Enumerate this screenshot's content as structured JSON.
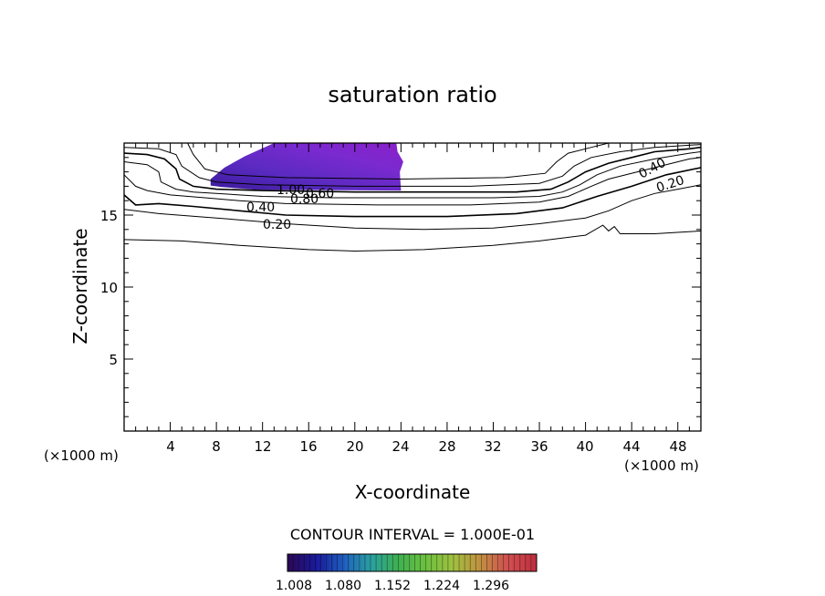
{
  "chart_data": {
    "type": "contour",
    "title": "saturation ratio",
    "xlabel": "X-coordinate",
    "ylabel": "Z-coordinate",
    "x_unit_left": "(×1000 m)",
    "x_unit_right": "(×1000 m)",
    "xlim": [
      0,
      50
    ],
    "ylim": [
      0,
      20
    ],
    "x_ticks": [
      "4",
      "8",
      "12",
      "16",
      "20",
      "24",
      "28",
      "32",
      "36",
      "40",
      "44",
      "48"
    ],
    "y_ticks": [
      "5",
      "10",
      "15"
    ],
    "contour_interval_text": "CONTOUR INTERVAL = 1.000E-01",
    "contour_labels": [
      "1.00",
      "0.80",
      "0.60",
      "0.40",
      "0.20",
      "0.40",
      "0.20"
    ],
    "colorbar": {
      "ticks": [
        "1.008",
        "1.080",
        "1.152",
        "1.224",
        "1.296"
      ],
      "range": [
        1.008,
        1.332
      ],
      "colors": [
        "#2a0a5a",
        "#1a1a9a",
        "#1f5fbf",
        "#2aa0a0",
        "#3fb050",
        "#6cc040",
        "#a0c040",
        "#c09040",
        "#d05050",
        "#c03040"
      ]
    },
    "shaded_region": {
      "x_range": [
        7.5,
        24
      ],
      "z_range": [
        16.7,
        20
      ],
      "value_range": [
        1.008,
        1.06
      ],
      "colors": [
        "#3a1a9a",
        "#5a2ac0",
        "#7a2ad0",
        "#8a20c8"
      ]
    },
    "contours": [
      {
        "level": "0.20",
        "points": [
          [
            0,
            13.3
          ],
          [
            5,
            13.2
          ],
          [
            10,
            12.9
          ],
          [
            16,
            12.6
          ],
          [
            20,
            12.5
          ],
          [
            26,
            12.6
          ],
          [
            32,
            12.9
          ],
          [
            36,
            13.2
          ],
          [
            40,
            13.6
          ],
          [
            41.5,
            14.3
          ],
          [
            42,
            13.9
          ],
          [
            42.5,
            14.2
          ],
          [
            43,
            13.7
          ],
          [
            46,
            13.7
          ],
          [
            50,
            13.9
          ]
        ]
      },
      {
        "level": "0.20",
        "points": [
          [
            0,
            15.4
          ],
          [
            3,
            15.1
          ],
          [
            8,
            14.8
          ],
          [
            14,
            14.4
          ],
          [
            20,
            14.1
          ],
          [
            26,
            14.0
          ],
          [
            32,
            14.1
          ],
          [
            36,
            14.4
          ],
          [
            40,
            14.8
          ],
          [
            42,
            15.3
          ],
          [
            44,
            16.0
          ],
          [
            46,
            16.5
          ],
          [
            48,
            16.8
          ],
          [
            50,
            17.1
          ]
        ]
      },
      {
        "level": "0.40",
        "points": [
          [
            0,
            16.4
          ],
          [
            1,
            15.7
          ],
          [
            3,
            15.8
          ],
          [
            6,
            15.6
          ],
          [
            10,
            15.3
          ],
          [
            14,
            15.0
          ],
          [
            20,
            14.9
          ],
          [
            28,
            14.9
          ],
          [
            34,
            15.1
          ],
          [
            38,
            15.5
          ],
          [
            41,
            16.3
          ],
          [
            44,
            17.0
          ],
          [
            47,
            17.8
          ],
          [
            50,
            18.3
          ]
        ]
      },
      {
        "level": "0.60",
        "points": [
          [
            0,
            17.8
          ],
          [
            1,
            17.0
          ],
          [
            2,
            16.7
          ],
          [
            4,
            16.4
          ],
          [
            7,
            16.2
          ],
          [
            10,
            16.0
          ],
          [
            14,
            15.8
          ],
          [
            22,
            15.7
          ],
          [
            30,
            15.7
          ],
          [
            36,
            15.9
          ],
          [
            38.5,
            16.3
          ],
          [
            40.5,
            17.0
          ],
          [
            42,
            17.5
          ],
          [
            46,
            18.3
          ],
          [
            49,
            18.9
          ],
          [
            50,
            19.0
          ]
        ]
      },
      {
        "level": "0.80",
        "points": [
          [
            0,
            18.7
          ],
          [
            2,
            18.5
          ],
          [
            3,
            18.0
          ],
          [
            3.2,
            17.3
          ],
          [
            4.5,
            16.8
          ],
          [
            6,
            16.6
          ],
          [
            8,
            16.5
          ],
          [
            12,
            16.3
          ],
          [
            18,
            16.2
          ],
          [
            26,
            16.2
          ],
          [
            32,
            16.2
          ],
          [
            36,
            16.3
          ],
          [
            38,
            16.6
          ],
          [
            39.5,
            17.1
          ],
          [
            41,
            17.8
          ],
          [
            43,
            18.4
          ],
          [
            46,
            18.9
          ],
          [
            49,
            19.3
          ],
          [
            50,
            19.4
          ]
        ]
      },
      {
        "level": "1.00",
        "points": [
          [
            0,
            19.3
          ],
          [
            2,
            19.2
          ],
          [
            3.5,
            18.9
          ],
          [
            4.5,
            18.2
          ],
          [
            4.8,
            17.5
          ],
          [
            6,
            17.0
          ],
          [
            8,
            16.8
          ],
          [
            12,
            16.7
          ],
          [
            20,
            16.6
          ],
          [
            28,
            16.6
          ],
          [
            34,
            16.6
          ],
          [
            37,
            16.8
          ],
          [
            38.5,
            17.3
          ],
          [
            40,
            18.0
          ],
          [
            42,
            18.6
          ],
          [
            44,
            19.0
          ],
          [
            46,
            19.4
          ],
          [
            49,
            19.6
          ],
          [
            50,
            19.7
          ]
        ]
      },
      {
        "level": "0.40",
        "points": [
          [
            0,
            19.7
          ],
          [
            3,
            19.6
          ],
          [
            4.5,
            19.2
          ],
          [
            5,
            18.4
          ],
          [
            6.5,
            17.6
          ],
          [
            8,
            17.3
          ],
          [
            12,
            17.1
          ],
          [
            20,
            17.0
          ],
          [
            30,
            17.0
          ],
          [
            36,
            17.2
          ],
          [
            38,
            17.7
          ],
          [
            39,
            18.4
          ],
          [
            40.5,
            19.0
          ],
          [
            43,
            19.4
          ],
          [
            46,
            19.7
          ],
          [
            50,
            19.9
          ]
        ]
      },
      {
        "level": "0.20",
        "points": [
          [
            5.5,
            20
          ],
          [
            6,
            19.2
          ],
          [
            7,
            18.2
          ],
          [
            9,
            17.8
          ],
          [
            14,
            17.6
          ],
          [
            24,
            17.5
          ],
          [
            33,
            17.6
          ],
          [
            36.5,
            17.9
          ],
          [
            37.5,
            18.7
          ],
          [
            38.5,
            19.3
          ],
          [
            40.5,
            19.7
          ],
          [
            42,
            20
          ]
        ]
      }
    ]
  }
}
